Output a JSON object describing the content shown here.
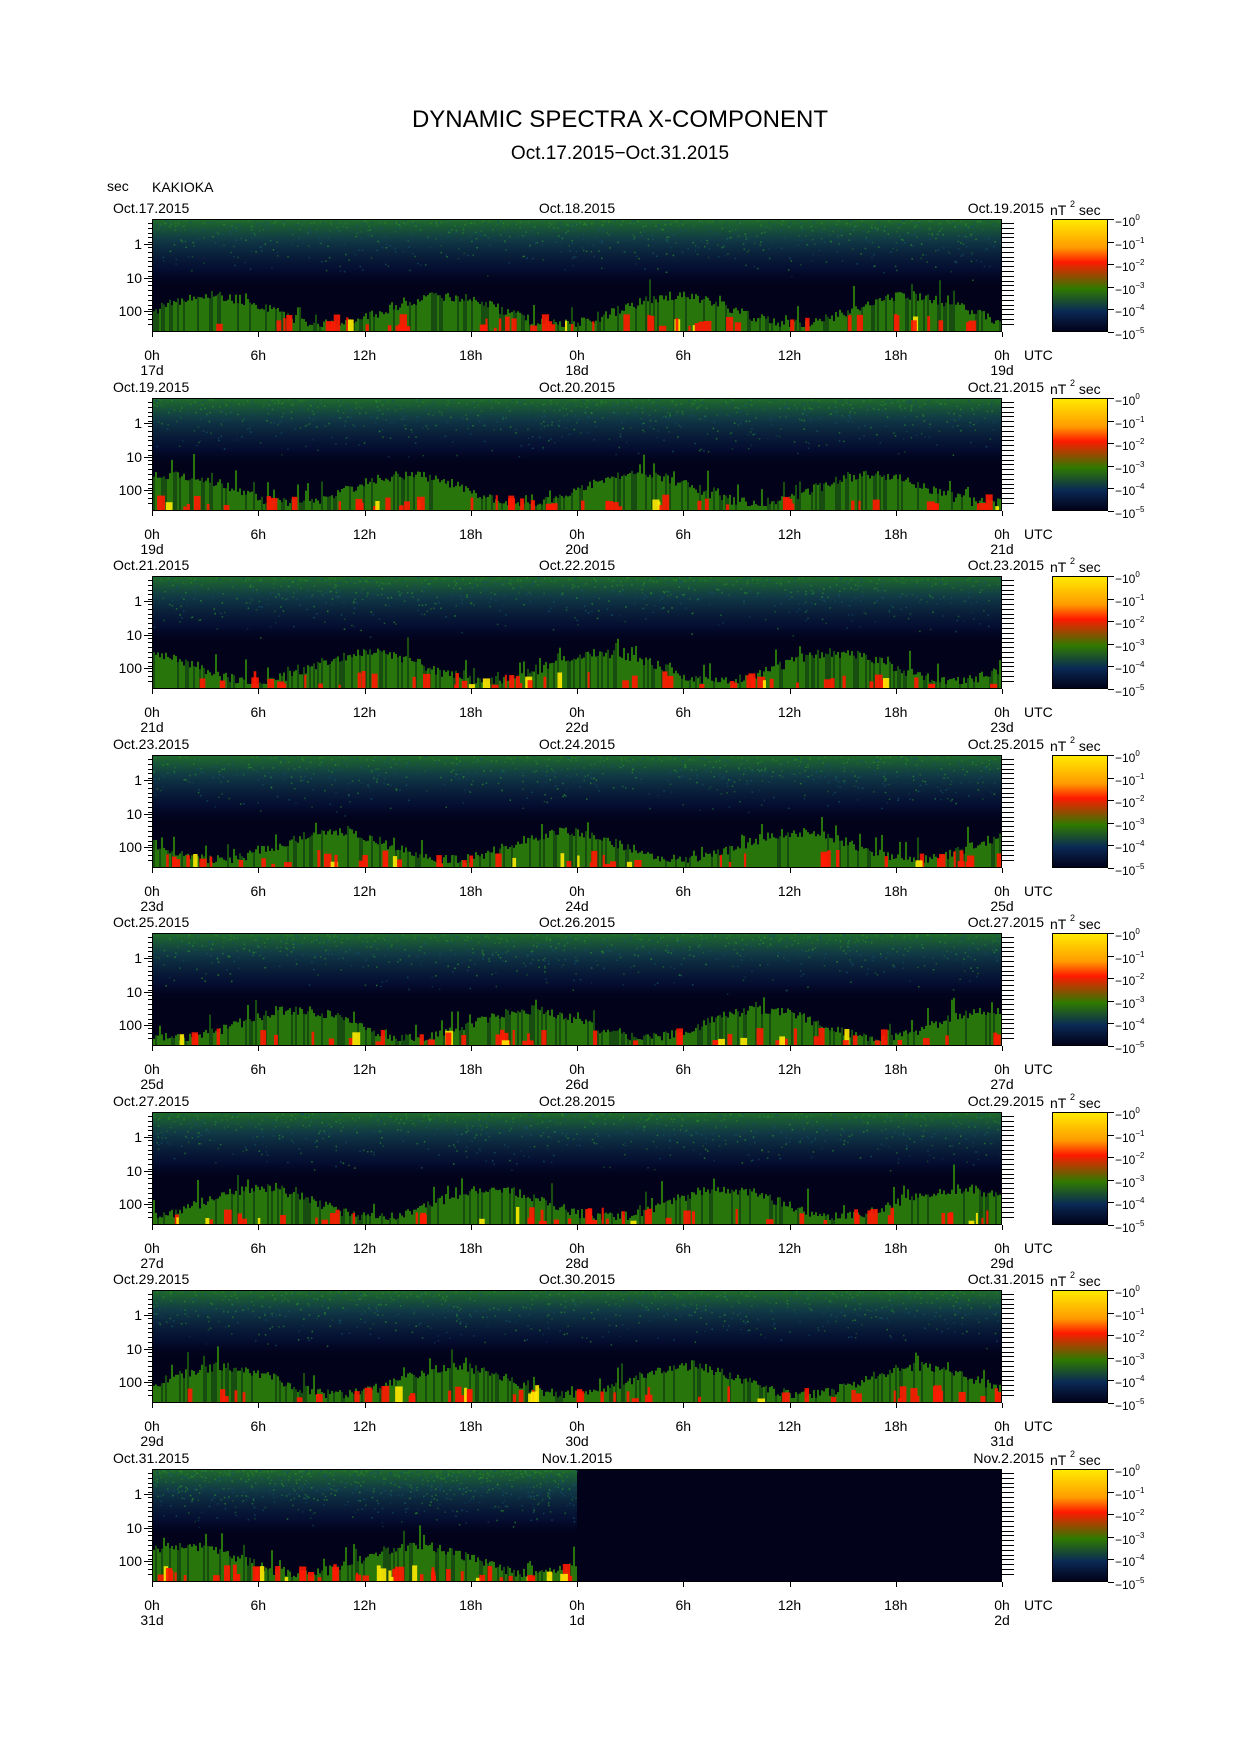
{
  "title": "DYNAMIC SPECTRA X-COMPONENT",
  "subtitle": "Oct.17.2015−Oct.31.2015",
  "y_unit": "sec",
  "station": "KAKIOKA",
  "x_time_label": "UTC",
  "colorbar_unit_base": "nT",
  "colorbar_unit_exp": "2",
  "colorbar_unit_tail": "sec",
  "colorbar_base": "10",
  "colorbar_exponents": [
    "0",
    "−1",
    "−2",
    "−3",
    "−4",
    "−5"
  ],
  "colors": {
    "background": "#02021a",
    "low": "#0a2a55",
    "mid": "#2f7a00",
    "high": "#ff1a00",
    "max": "#ffea00"
  },
  "chart_data": {
    "type": "heatmap",
    "x_axis": "time (UTC), 48 h per panel",
    "y_axis": "period (sec), log scale, increasing downward",
    "y_tick_labels": [
      "1",
      "10",
      "100"
    ],
    "x_tick_labels": [
      "0h",
      "6h",
      "12h",
      "18h",
      "0h",
      "6h",
      "12h",
      "18h",
      "0h"
    ],
    "colorbar_range": [
      "10^-5",
      "10^0"
    ],
    "panels": [
      {
        "left_date": "Oct.17.2015",
        "mid_date": "Oct.18.2015",
        "right_date": "Oct.19.2015",
        "day_labels": [
          "17d",
          "18d",
          "19d"
        ],
        "data_until_hours": 48
      },
      {
        "left_date": "Oct.19.2015",
        "mid_date": "Oct.20.2015",
        "right_date": "Oct.21.2015",
        "day_labels": [
          "19d",
          "20d",
          "21d"
        ],
        "data_until_hours": 48
      },
      {
        "left_date": "Oct.21.2015",
        "mid_date": "Oct.22.2015",
        "right_date": "Oct.23.2015",
        "day_labels": [
          "21d",
          "22d",
          "23d"
        ],
        "data_until_hours": 48
      },
      {
        "left_date": "Oct.23.2015",
        "mid_date": "Oct.24.2015",
        "right_date": "Oct.25.2015",
        "day_labels": [
          "23d",
          "24d",
          "25d"
        ],
        "data_until_hours": 48
      },
      {
        "left_date": "Oct.25.2015",
        "mid_date": "Oct.26.2015",
        "right_date": "Oct.27.2015",
        "day_labels": [
          "25d",
          "26d",
          "27d"
        ],
        "data_until_hours": 48
      },
      {
        "left_date": "Oct.27.2015",
        "mid_date": "Oct.28.2015",
        "right_date": "Oct.29.2015",
        "day_labels": [
          "27d",
          "28d",
          "29d"
        ],
        "data_until_hours": 48
      },
      {
        "left_date": "Oct.29.2015",
        "mid_date": "Oct.30.2015",
        "right_date": "Oct.31.2015",
        "day_labels": [
          "29d",
          "30d",
          "31d"
        ],
        "data_until_hours": 48
      },
      {
        "left_date": "Oct.31.2015",
        "mid_date": "Nov.1.2015",
        "right_date": "Nov.2.2015",
        "day_labels": [
          "31d",
          "1d",
          "2d"
        ],
        "data_until_hours": 24
      }
    ]
  }
}
